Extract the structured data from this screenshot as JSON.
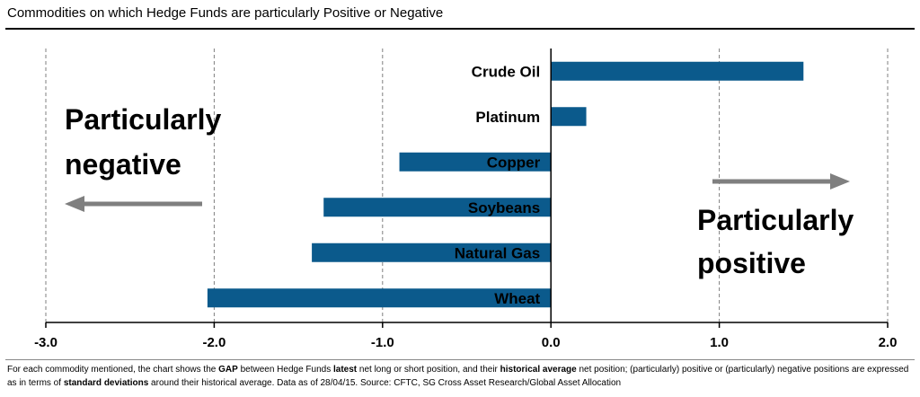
{
  "title": "Commodities on which Hedge Funds are particularly Positive or Negative",
  "annotations": {
    "negative_line1": "Particularly",
    "negative_line2": "negative",
    "positive_line1": "Particularly",
    "positive_line2": "positive"
  },
  "colors": {
    "bar": "#0b5a8c",
    "arrow": "#7f7f7f",
    "axis": "#000000",
    "grid": "#7f7f7f"
  },
  "footnote": {
    "p1": "For each commodity mentioned, the chart shows the ",
    "b1": "GAP",
    "p2": " between Hedge Funds ",
    "b2": "latest",
    "p3": " net long or short position, and their ",
    "b3": "historical average",
    "p4": " net position; (particularly) positive or (particularly) negative positions are expressed as in terms of ",
    "b4": "standard deviations",
    "p5": " around their historical average. Data as of 28/04/15. Source: CFTC, SG Cross Asset Research/Global Asset Allocation"
  },
  "chart_data": {
    "type": "bar",
    "orientation": "horizontal",
    "categories": [
      "Crude Oil",
      "Platinum",
      "Copper",
      "Soybeans",
      "Natural Gas",
      "Wheat"
    ],
    "values": [
      1.5,
      0.21,
      -0.9,
      -1.35,
      -1.42,
      -2.04
    ],
    "xlim": [
      -3.0,
      2.0
    ],
    "xticks": [
      -3.0,
      -2.0,
      -1.0,
      0.0,
      1.0,
      2.0
    ],
    "xtick_labels": [
      "-3.0",
      "-2.0",
      "-1.0",
      "0.0",
      "1.0",
      "2.0"
    ],
    "grid": "vertical dashed",
    "legend": "none"
  }
}
